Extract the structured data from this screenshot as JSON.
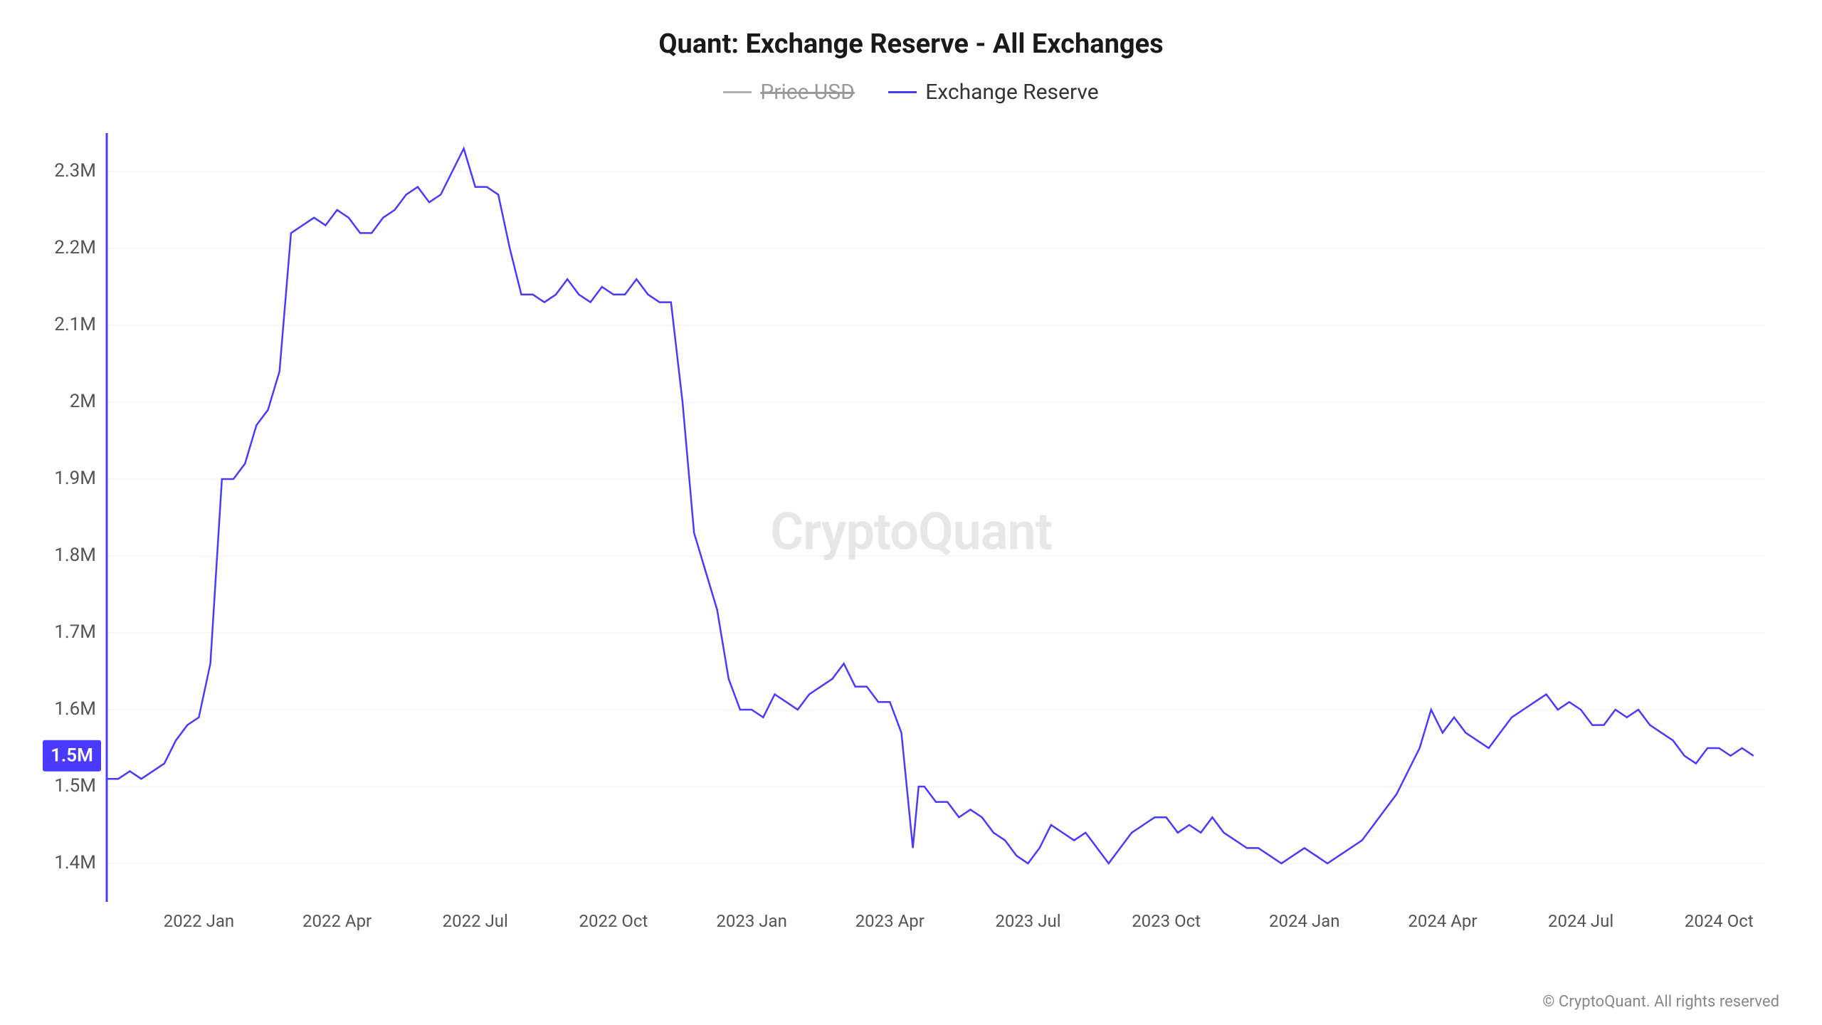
{
  "chart": {
    "type": "line",
    "title": "Quant: Exchange Reserve - All Exchanges",
    "legend": [
      {
        "label": "Price USD",
        "color": "#b0b0b0",
        "disabled": true
      },
      {
        "label": "Exchange Reserve",
        "color": "#4a3aff",
        "disabled": false
      }
    ],
    "watermark": "CryptoQuant",
    "copyright": "© CryptoQuant. All rights reserved",
    "y_axis": {
      "min": 1.35,
      "max": 2.35,
      "ticks": [
        1.4,
        1.5,
        1.6,
        1.7,
        1.8,
        1.9,
        2.0,
        2.1,
        2.2,
        2.3
      ],
      "tick_labels": [
        "1.4M",
        "1.5M",
        "1.6M",
        "1.7M",
        "1.8M",
        "1.9M",
        "2M",
        "2.1M",
        "2.2M",
        "2.3M"
      ],
      "label_fontsize": 26,
      "grid_color": "#f0f0f0"
    },
    "x_axis": {
      "min": 0,
      "max": 144,
      "ticks": [
        8,
        20,
        32,
        44,
        56,
        68,
        80,
        92,
        104,
        116,
        128,
        140
      ],
      "tick_labels": [
        "2022 Jan",
        "2022 Apr",
        "2022 Jul",
        "2022 Oct",
        "2023 Jan",
        "2023 Apr",
        "2023 Jul",
        "2023 Oct",
        "2024 Jan",
        "2024 Apr",
        "2024 Jul",
        "2024 Oct"
      ],
      "label_fontsize": 24
    },
    "current_value": {
      "label": "1.5M",
      "value": 1.54
    },
    "series": {
      "name": "Exchange Reserve",
      "color": "#4a3aff",
      "line_width": 2.5,
      "data": [
        [
          0,
          1.51
        ],
        [
          1,
          1.51
        ],
        [
          2,
          1.52
        ],
        [
          3,
          1.51
        ],
        [
          4,
          1.52
        ],
        [
          5,
          1.53
        ],
        [
          6,
          1.56
        ],
        [
          7,
          1.58
        ],
        [
          8,
          1.59
        ],
        [
          9,
          1.66
        ],
        [
          10,
          1.9
        ],
        [
          11,
          1.9
        ],
        [
          12,
          1.92
        ],
        [
          13,
          1.97
        ],
        [
          14,
          1.99
        ],
        [
          15,
          2.04
        ],
        [
          16,
          2.22
        ],
        [
          17,
          2.23
        ],
        [
          18,
          2.24
        ],
        [
          19,
          2.23
        ],
        [
          20,
          2.25
        ],
        [
          21,
          2.24
        ],
        [
          22,
          2.22
        ],
        [
          23,
          2.22
        ],
        [
          24,
          2.24
        ],
        [
          25,
          2.25
        ],
        [
          26,
          2.27
        ],
        [
          27,
          2.28
        ],
        [
          28,
          2.26
        ],
        [
          29,
          2.27
        ],
        [
          30,
          2.3
        ],
        [
          31,
          2.33
        ],
        [
          32,
          2.28
        ],
        [
          33,
          2.28
        ],
        [
          34,
          2.27
        ],
        [
          35,
          2.2
        ],
        [
          36,
          2.14
        ],
        [
          37,
          2.14
        ],
        [
          38,
          2.13
        ],
        [
          39,
          2.14
        ],
        [
          40,
          2.16
        ],
        [
          41,
          2.14
        ],
        [
          42,
          2.13
        ],
        [
          43,
          2.15
        ],
        [
          44,
          2.14
        ],
        [
          45,
          2.14
        ],
        [
          46,
          2.16
        ],
        [
          47,
          2.14
        ],
        [
          48,
          2.13
        ],
        [
          49,
          2.13
        ],
        [
          50,
          2.0
        ],
        [
          51,
          1.83
        ],
        [
          52,
          1.78
        ],
        [
          53,
          1.73
        ],
        [
          54,
          1.64
        ],
        [
          55,
          1.6
        ],
        [
          56,
          1.6
        ],
        [
          57,
          1.59
        ],
        [
          58,
          1.62
        ],
        [
          59,
          1.61
        ],
        [
          60,
          1.6
        ],
        [
          61,
          1.62
        ],
        [
          62,
          1.63
        ],
        [
          63,
          1.64
        ],
        [
          64,
          1.66
        ],
        [
          65,
          1.63
        ],
        [
          66,
          1.63
        ],
        [
          67,
          1.61
        ],
        [
          68,
          1.61
        ],
        [
          69,
          1.57
        ],
        [
          70,
          1.42
        ],
        [
          70.5,
          1.5
        ],
        [
          71,
          1.5
        ],
        [
          72,
          1.48
        ],
        [
          73,
          1.48
        ],
        [
          74,
          1.46
        ],
        [
          75,
          1.47
        ],
        [
          76,
          1.46
        ],
        [
          77,
          1.44
        ],
        [
          78,
          1.43
        ],
        [
          79,
          1.41
        ],
        [
          80,
          1.4
        ],
        [
          81,
          1.42
        ],
        [
          82,
          1.45
        ],
        [
          83,
          1.44
        ],
        [
          84,
          1.43
        ],
        [
          85,
          1.44
        ],
        [
          86,
          1.42
        ],
        [
          87,
          1.4
        ],
        [
          88,
          1.42
        ],
        [
          89,
          1.44
        ],
        [
          90,
          1.45
        ],
        [
          91,
          1.46
        ],
        [
          92,
          1.46
        ],
        [
          93,
          1.44
        ],
        [
          94,
          1.45
        ],
        [
          95,
          1.44
        ],
        [
          96,
          1.46
        ],
        [
          97,
          1.44
        ],
        [
          98,
          1.43
        ],
        [
          99,
          1.42
        ],
        [
          100,
          1.42
        ],
        [
          101,
          1.41
        ],
        [
          102,
          1.4
        ],
        [
          103,
          1.41
        ],
        [
          104,
          1.42
        ],
        [
          105,
          1.41
        ],
        [
          106,
          1.4
        ],
        [
          107,
          1.41
        ],
        [
          108,
          1.42
        ],
        [
          109,
          1.43
        ],
        [
          110,
          1.45
        ],
        [
          111,
          1.47
        ],
        [
          112,
          1.49
        ],
        [
          113,
          1.52
        ],
        [
          114,
          1.55
        ],
        [
          115,
          1.6
        ],
        [
          116,
          1.57
        ],
        [
          117,
          1.59
        ],
        [
          118,
          1.57
        ],
        [
          119,
          1.56
        ],
        [
          120,
          1.55
        ],
        [
          121,
          1.57
        ],
        [
          122,
          1.59
        ],
        [
          123,
          1.6
        ],
        [
          124,
          1.61
        ],
        [
          125,
          1.62
        ],
        [
          126,
          1.6
        ],
        [
          127,
          1.61
        ],
        [
          128,
          1.6
        ],
        [
          129,
          1.58
        ],
        [
          130,
          1.58
        ],
        [
          131,
          1.6
        ],
        [
          132,
          1.59
        ],
        [
          133,
          1.6
        ],
        [
          134,
          1.58
        ],
        [
          135,
          1.57
        ],
        [
          136,
          1.56
        ],
        [
          137,
          1.54
        ],
        [
          138,
          1.53
        ],
        [
          139,
          1.55
        ],
        [
          140,
          1.55
        ],
        [
          141,
          1.54
        ],
        [
          142,
          1.55
        ],
        [
          143,
          1.54
        ]
      ]
    },
    "background_color": "#ffffff"
  }
}
